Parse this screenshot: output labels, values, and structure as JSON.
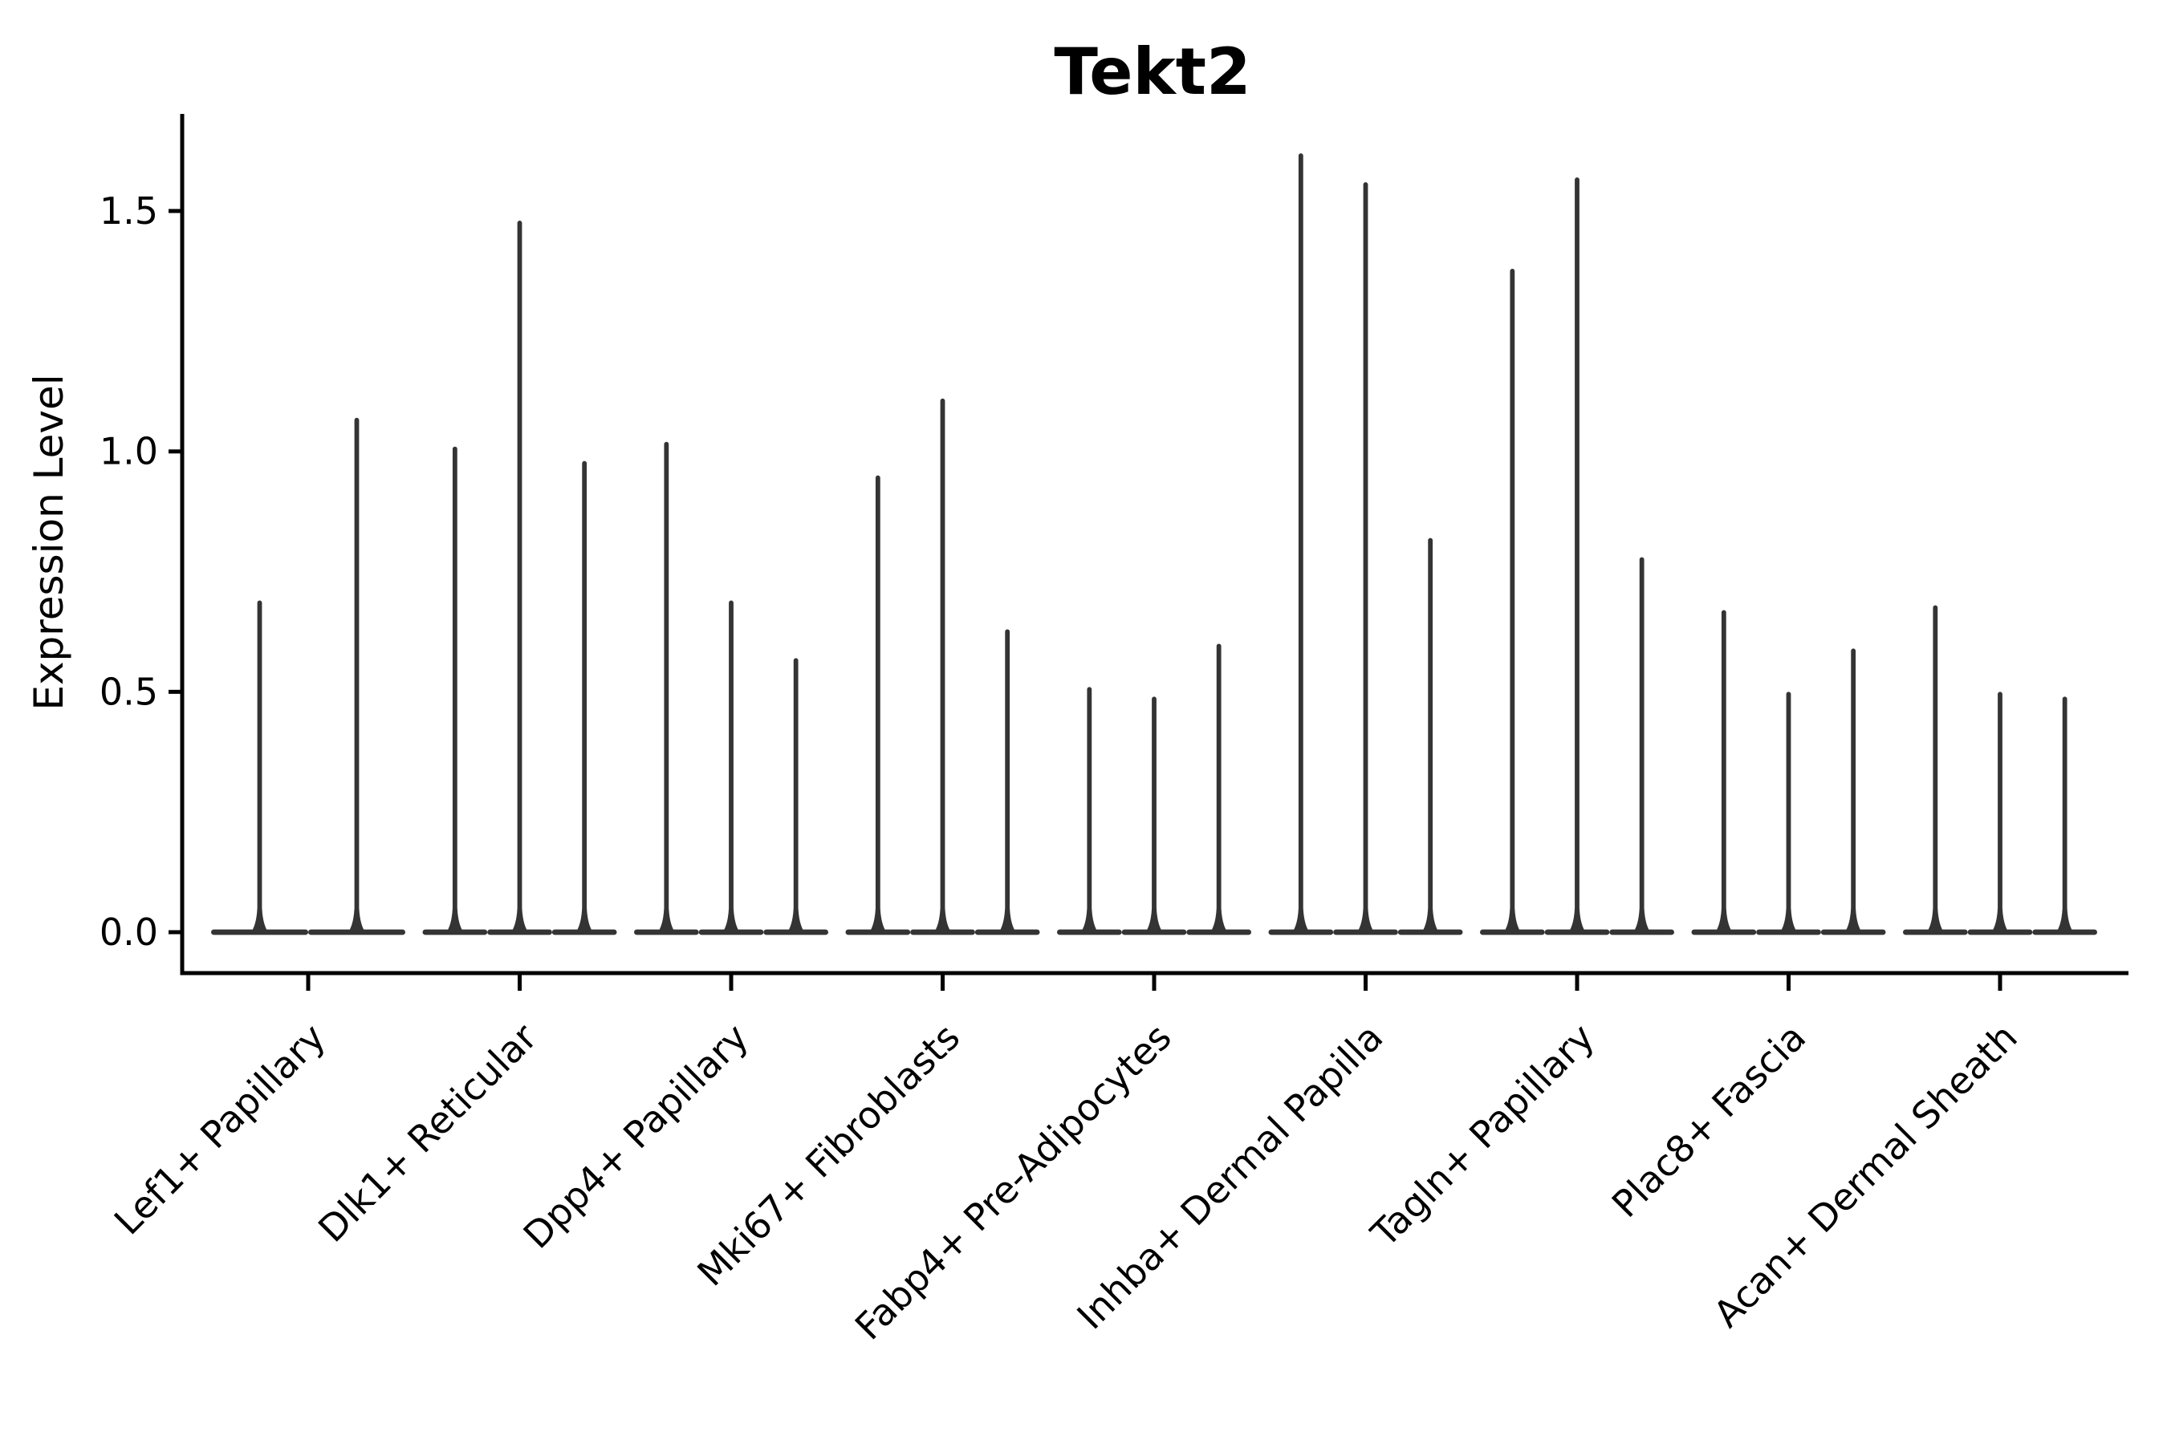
{
  "chart_data": {
    "type": "violin",
    "title": "Tekt2",
    "ylabel": "Expression Level",
    "xlabel": "",
    "grid": false,
    "legend": "none",
    "ylim": [
      -0.08,
      1.7
    ],
    "ytick_values": [
      0.0,
      0.5,
      1.0,
      1.5
    ],
    "ytick_labels": [
      "0.0",
      "0.5",
      "1.0",
      "1.5"
    ],
    "categories": [
      "Lef1+ Papillary",
      "Dlk1+ Reticular",
      "Dpp4+ Papillary",
      "Mki67+ Fibroblasts",
      "Fabp4+ Pre-Adipocytes",
      "Inhba+ Dermal Papilla",
      "Tagln+ Papillary",
      "Plac8+ Fascia",
      "Acan+ Dermal Sheath"
    ],
    "series": [
      {
        "category": "Lef1+ Papillary",
        "violin_max_expression": [
          0.69,
          1.07
        ]
      },
      {
        "category": "Dlk1+ Reticular",
        "violin_max_expression": [
          1.01,
          1.48,
          0.98
        ]
      },
      {
        "category": "Dpp4+ Papillary",
        "violin_max_expression": [
          1.02,
          0.69,
          0.57
        ]
      },
      {
        "category": "Mki67+ Fibroblasts",
        "violin_max_expression": [
          0.95,
          1.11,
          0.63
        ]
      },
      {
        "category": "Fabp4+ Pre-Adipocytes",
        "violin_max_expression": [
          0.51,
          0.49,
          0.6
        ]
      },
      {
        "category": "Inhba+ Dermal Papilla",
        "violin_max_expression": [
          1.62,
          1.56,
          0.82
        ]
      },
      {
        "category": "Tagln+ Papillary",
        "violin_max_expression": [
          1.38,
          1.57,
          0.78
        ]
      },
      {
        "category": "Plac8+ Fascia",
        "violin_max_expression": [
          0.67,
          0.5,
          0.59
        ]
      },
      {
        "category": "Acan+ Dermal Sheath",
        "violin_max_expression": [
          0.68,
          0.5,
          0.49
        ]
      }
    ],
    "violin_shape_note": "distribution mass concentrated at 0 with thin spike to max",
    "colors": {
      "violin": "#343434",
      "axis": "#000000",
      "text": "#000000",
      "background": "#ffffff"
    }
  }
}
